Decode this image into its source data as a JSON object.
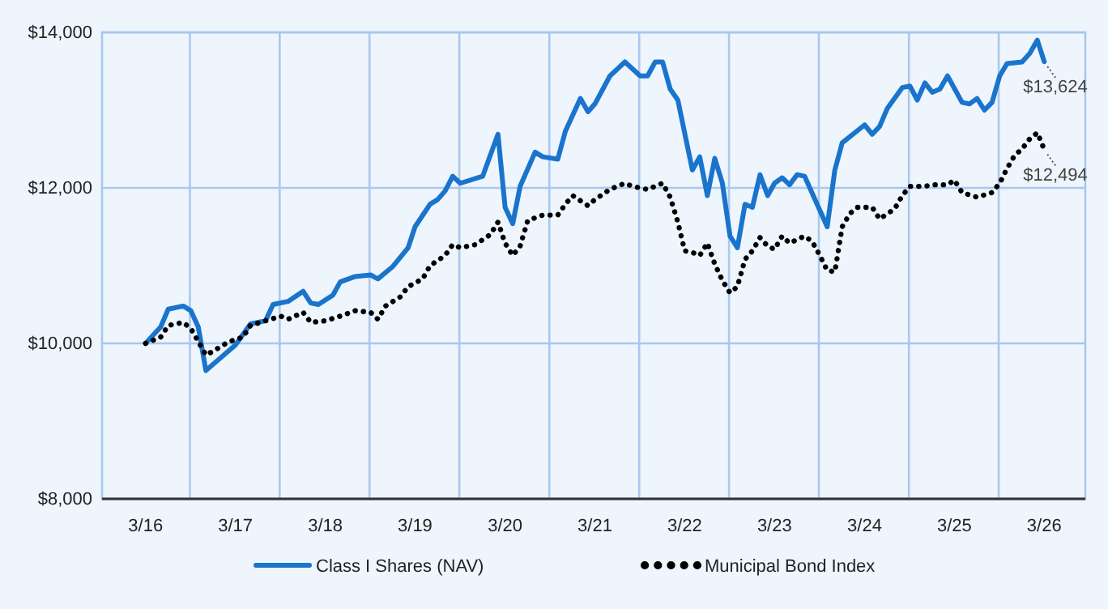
{
  "chart_data": {
    "type": "line",
    "xlim": [
      "2015-09-06",
      "2026-08-15"
    ],
    "xticks": [
      {
        "value": "2016-03",
        "label": "3/16"
      },
      {
        "value": "2016-08-28",
        "label": null
      },
      {
        "value": "2017-03",
        "label": "3/17"
      },
      {
        "value": "2017-08-28",
        "label": null
      },
      {
        "value": "2018-03",
        "label": "3/18"
      },
      {
        "value": "2018-08-28",
        "label": null
      },
      {
        "value": "2019-03",
        "label": "3/19"
      },
      {
        "value": "2019-08-28",
        "label": null
      },
      {
        "value": "2020-03",
        "label": "3/20"
      },
      {
        "value": "2020-08-28",
        "label": null
      },
      {
        "value": "2021-03",
        "label": "3/21"
      },
      {
        "value": "2021-08-28",
        "label": null
      },
      {
        "value": "2022-03",
        "label": "3/22"
      },
      {
        "value": "2022-08-28",
        "label": null
      },
      {
        "value": "2023-03",
        "label": "3/23"
      },
      {
        "value": "2023-08-28",
        "label": null
      },
      {
        "value": "2024-03",
        "label": "3/24"
      },
      {
        "value": "2024-08-28",
        "label": null
      },
      {
        "value": "2025-03",
        "label": "3/25"
      },
      {
        "value": "2025-08-28",
        "label": null
      },
      {
        "value": "2026-03",
        "label": "3/26"
      }
    ],
    "ylim": [
      8000,
      14000
    ],
    "yticks": [
      {
        "value": 8000,
        "label": "$8,000"
      },
      {
        "value": 10000,
        "label": "$10,000"
      },
      {
        "value": 12000,
        "label": "$12,000"
      },
      {
        "value": 14000,
        "label": "$14,000"
      }
    ],
    "grid": true,
    "legend": "bottom",
    "series": [
      {
        "name": "Class I Shares (NAV)",
        "color": "#1a74cc",
        "line_style": "solid",
        "marker": "none",
        "x": [
          "2016-03",
          "2016-05",
          "2016-06",
          "2016-08",
          "2016-09",
          "2016-10",
          "2016-11",
          "2017-03",
          "2017-05",
          "2017-07",
          "2017-08",
          "2017-10",
          "2017-12",
          "2018-01",
          "2018-02",
          "2018-04",
          "2018-05",
          "2018-07",
          "2018-09",
          "2018-10",
          "2018-12",
          "2019-02",
          "2019-03",
          "2019-05",
          "2019-06",
          "2019-07",
          "2019-08",
          "2019-09",
          "2019-12",
          "2020-02",
          "2020-03",
          "2020-04",
          "2020-05",
          "2020-07",
          "2020-08",
          "2020-10",
          "2020-11",
          "2021-01",
          "2021-02",
          "2021-03",
          "2021-05",
          "2021-07",
          "2021-09",
          "2021-10",
          "2021-11",
          "2021-12",
          "2022-01",
          "2022-02",
          "2022-04",
          "2022-05",
          "2022-06",
          "2022-07",
          "2022-08",
          "2022-09",
          "2022-10",
          "2022-11",
          "2022-12",
          "2023-01",
          "2023-02",
          "2023-03",
          "2023-04",
          "2023-05",
          "2023-06",
          "2023-07",
          "2023-10",
          "2023-11",
          "2023-12",
          "2024-03",
          "2024-04",
          "2024-05",
          "2024-06",
          "2024-08",
          "2024-09",
          "2024-10",
          "2024-11",
          "2024-12",
          "2025-01",
          "2025-02",
          "2025-04",
          "2025-05",
          "2025-06",
          "2025-07",
          "2025-08",
          "2025-09",
          "2025-10",
          "2025-12",
          "2026-01",
          "2026-02",
          "2026-03"
        ],
        "values": [
          10000,
          10210,
          10440,
          10480,
          10420,
          10210,
          9650,
          9980,
          10250,
          10290,
          10500,
          10540,
          10670,
          10520,
          10500,
          10620,
          10790,
          10860,
          10880,
          10830,
          10990,
          11230,
          11500,
          11790,
          11850,
          11960,
          12150,
          12060,
          12150,
          12690,
          11750,
          11540,
          12020,
          12460,
          12400,
          12370,
          12730,
          13150,
          12980,
          13080,
          13440,
          13620,
          13440,
          13440,
          13620,
          13620,
          13270,
          13130,
          12230,
          12400,
          11900,
          12380,
          12060,
          11380,
          11230,
          11790,
          11750,
          12170,
          11900,
          12060,
          12130,
          12040,
          12170,
          12150,
          11500,
          12230,
          12580,
          12810,
          12690,
          12790,
          13020,
          13290,
          13310,
          13130,
          13350,
          13230,
          13270,
          13440,
          13100,
          13080,
          13150,
          13000,
          13100,
          13440,
          13600,
          13620,
          13730,
          13900,
          13624
        ]
      },
      {
        "name": "Municipal Bond Index",
        "color": "#000000",
        "line_style": "dotted",
        "marker": "none",
        "x": [
          "2016-03",
          "2016-05",
          "2016-06",
          "2016-08",
          "2016-09",
          "2016-11",
          "2016-12",
          "2017-02",
          "2017-04",
          "2017-05",
          "2017-07",
          "2017-09",
          "2017-10",
          "2017-12",
          "2018-01",
          "2018-03",
          "2018-05",
          "2018-07",
          "2018-09",
          "2018-10",
          "2018-11",
          "2019-01",
          "2019-02",
          "2019-04",
          "2019-05",
          "2019-07",
          "2019-08",
          "2019-09",
          "2019-11",
          "2020-01",
          "2020-02",
          "2020-03",
          "2020-04",
          "2020-05",
          "2020-06",
          "2020-08",
          "2020-10",
          "2020-11",
          "2020-12",
          "2021-02",
          "2021-03",
          "2021-05",
          "2021-07",
          "2021-08",
          "2021-10",
          "2021-12",
          "2022-01",
          "2022-02",
          "2022-03",
          "2022-04",
          "2022-05",
          "2022-06",
          "2022-07",
          "2022-08",
          "2022-09",
          "2022-10",
          "2022-11",
          "2022-12",
          "2023-01",
          "2023-02",
          "2023-03",
          "2023-04",
          "2023-05",
          "2023-07",
          "2023-08",
          "2023-09",
          "2023-10",
          "2023-11",
          "2023-12",
          "2024-01",
          "2024-02",
          "2024-04",
          "2024-05",
          "2024-07",
          "2024-08",
          "2024-09",
          "2024-11",
          "2024-12",
          "2025-01",
          "2025-02",
          "2025-03",
          "2025-04",
          "2025-06",
          "2025-08",
          "2025-09",
          "2025-10",
          "2025-11",
          "2025-12",
          "2026-01",
          "2026-02",
          "2026-03"
        ],
        "values": [
          10000,
          10080,
          10230,
          10270,
          10190,
          9850,
          9900,
          10020,
          10080,
          10230,
          10290,
          10350,
          10310,
          10400,
          10270,
          10290,
          10350,
          10420,
          10400,
          10310,
          10480,
          10600,
          10730,
          10830,
          11000,
          11130,
          11270,
          11230,
          11270,
          11400,
          11560,
          11290,
          11130,
          11250,
          11580,
          11650,
          11650,
          11790,
          11900,
          11770,
          11850,
          11980,
          12060,
          12020,
          11980,
          12060,
          11880,
          11560,
          11190,
          11170,
          11130,
          11290,
          11020,
          10810,
          10650,
          10730,
          11080,
          11190,
          11360,
          11250,
          11210,
          11380,
          11290,
          11380,
          11310,
          11130,
          10940,
          10920,
          11500,
          11670,
          11750,
          11750,
          11600,
          11730,
          11900,
          12020,
          12020,
          12040,
          12040,
          12040,
          12100,
          11940,
          11880,
          11940,
          12060,
          12250,
          12420,
          12500,
          12630,
          12710,
          12494
        ]
      }
    ],
    "annotations": [
      {
        "text": "$13,624",
        "x": "2026-03",
        "y": 13624
      },
      {
        "text": "$12,494",
        "x": "2026-03",
        "y": 12494
      }
    ]
  }
}
